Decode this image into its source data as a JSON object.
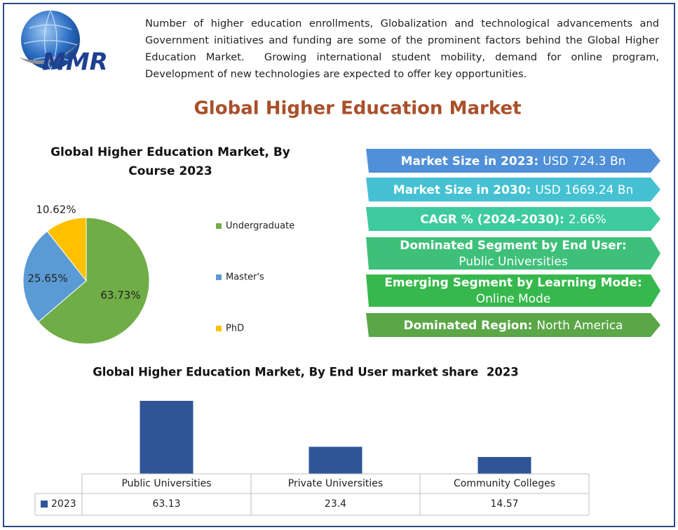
{
  "logo": {
    "text": "MMR"
  },
  "description": "Number of higher education enrollments, Globalization and technological advancements and Government initiatives and funding are some of the prominent factors behind the Global Higher Education Market.  Growing international student mobility, demand for online program, Development of new technologies are expected to offer key opportunities.",
  "title": "Global Higher Education Market",
  "stats": [
    {
      "label": "Market Size in 2023:",
      "value": "USD 724.3 Bn",
      "color": "#4f90d8"
    },
    {
      "label": "Market Size in 2030:",
      "value": "USD 1669.24 Bn",
      "color": "#45c1d3"
    },
    {
      "label": "CAGR % (2024-2030):",
      "value": "2.66%",
      "color": "#3dcb9e"
    },
    {
      "label": "Dominated Segment by End User:",
      "value": "Public Universities",
      "color": "#3fc07a"
    },
    {
      "label": "Emerging Segment by Learning Mode:",
      "value": "Online Mode",
      "color": "#36b84c"
    },
    {
      "label": "Dominated Region:",
      "value": "North America",
      "color": "#5ba647"
    }
  ],
  "chart_data": [
    {
      "type": "pie",
      "title": "Global Higher Education Market, By Course 2023",
      "categories": [
        "Undergraduate",
        "Master's",
        "PhD"
      ],
      "values": [
        63.73,
        25.65,
        10.62
      ],
      "value_labels": [
        "63.73%",
        "25.65%",
        "10.62%"
      ],
      "colors": [
        "#70ad47",
        "#5b9bd5",
        "#ffc000"
      ]
    },
    {
      "type": "bar",
      "title": "Global Higher Education Market, By End User market share  2023",
      "categories": [
        "Public Universities",
        "Private Universities",
        "Community Colleges"
      ],
      "series": [
        {
          "name": "2023",
          "color": "#2f5597",
          "values": [
            63.13,
            23.4,
            14.57
          ]
        }
      ]
    }
  ]
}
